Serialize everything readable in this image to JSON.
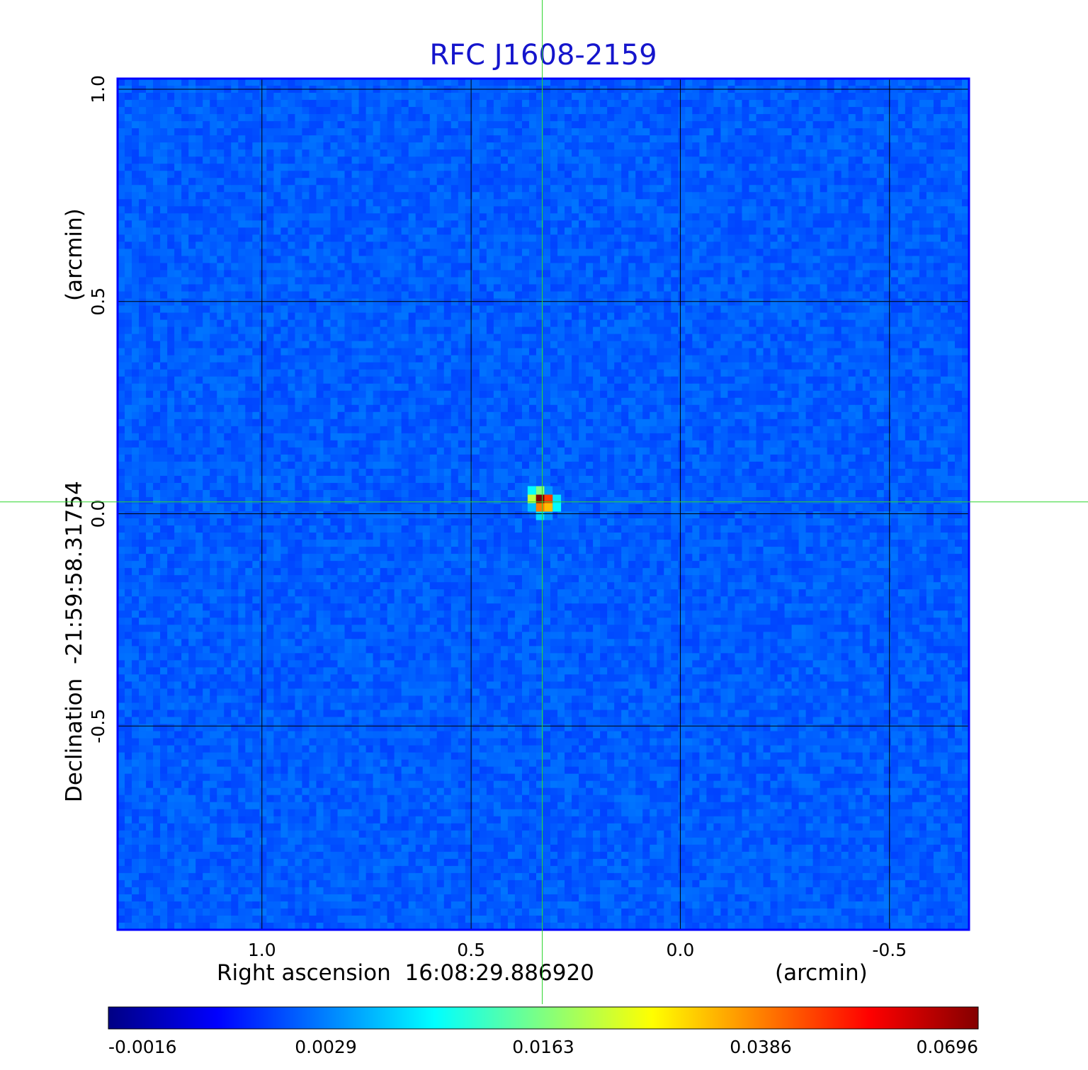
{
  "chart_data": {
    "type": "heatmap",
    "title": "RFC J1608-2159",
    "xlabel": "Right ascension  16:08:29.886920",
    "xunit": "(arcmin)",
    "ylabel": "Declination  -21:59:58.31754",
    "yunit": "(arcmin)",
    "x_ticks": [
      1.0,
      0.5,
      0.0,
      -0.5
    ],
    "x_tick_labels": [
      "1.0",
      "0.5",
      "0.0",
      "-0.5"
    ],
    "y_ticks": [
      1.0,
      0.5,
      0.0,
      -0.5
    ],
    "y_tick_labels": [
      "1.0",
      "0.5",
      "0.0",
      "-0.5"
    ],
    "xlim": [
      1.345,
      -0.69
    ],
    "ylim": [
      -0.98,
      1.025
    ],
    "grid": true,
    "crosshair": {
      "x": 0.33,
      "y": 0.028
    },
    "colormap": "jet",
    "colorbar_ticks": [
      -0.0016,
      0.0029,
      0.0163,
      0.0386,
      0.0696
    ],
    "colorbar_tick_labels": [
      "-0.0016",
      "0.0029",
      "0.0163",
      "0.0386",
      "0.0696"
    ],
    "source": {
      "x": 0.335,
      "y": 0.035,
      "peak": 0.0696,
      "description_values": [
        {
          "dx": 0.0,
          "dy": 0.0,
          "value": 0.0696
        },
        {
          "dx": -0.02,
          "dy": 0.0,
          "value": 0.055
        },
        {
          "dx": 0.0,
          "dy": -0.02,
          "value": 0.05
        },
        {
          "dx": -0.02,
          "dy": -0.02,
          "value": 0.045
        },
        {
          "dx": 0.02,
          "dy": 0.0,
          "value": 0.035
        },
        {
          "dx": 0.0,
          "dy": 0.02,
          "value": 0.03
        },
        {
          "dx": 0.02,
          "dy": 0.02,
          "value": 0.02
        },
        {
          "dx": -0.04,
          "dy": -0.02,
          "value": 0.02
        },
        {
          "dx": -0.04,
          "dy": 0.0,
          "value": 0.018
        },
        {
          "dx": 0.0,
          "dy": -0.04,
          "value": 0.017
        },
        {
          "dx": -0.02,
          "dy": -0.04,
          "value": 0.012
        },
        {
          "dx": 0.02,
          "dy": -0.02,
          "value": 0.015
        },
        {
          "dx": -0.02,
          "dy": 0.02,
          "value": 0.012
        },
        {
          "dx": -0.04,
          "dy": 0.02,
          "value": 0.008
        }
      ]
    },
    "background_level": 0.0,
    "vmin": -0.0016,
    "vmax": 0.0696
  },
  "colors": {
    "title": "#1515cc",
    "crosshair": "#2fd62f",
    "grid": "#000000",
    "frame": "#0000ff"
  }
}
